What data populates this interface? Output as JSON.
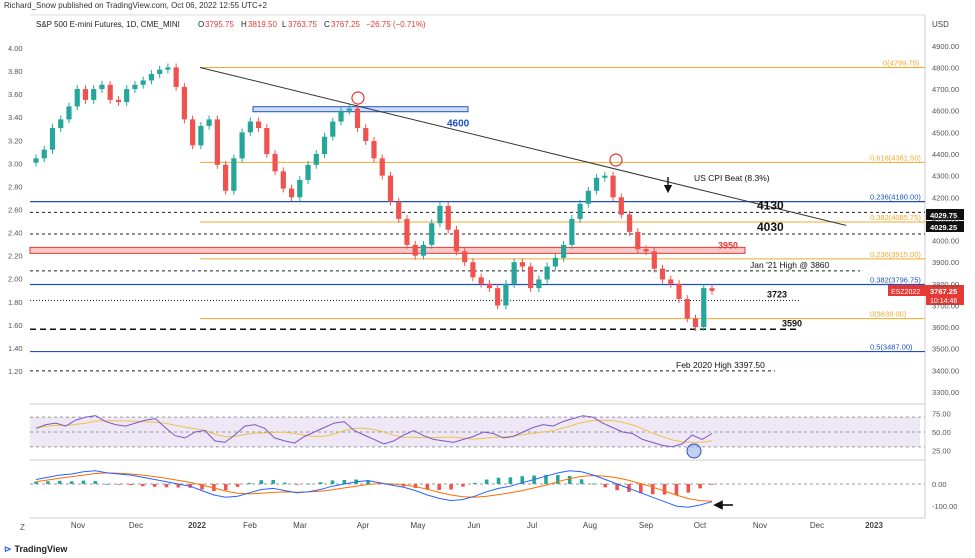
{
  "header": {
    "published": "Richard_Snow published on TradingView.com, Oct 06, 2022 12:55 UTC+2",
    "symbol_line": "S&P 500 E-mini Futures, 1D, CME_MINI",
    "ohlc": {
      "o_label": "O",
      "o": "3795.75",
      "h_label": "H",
      "h": "3819.50",
      "l_label": "L",
      "l": "3763.75",
      "c_label": "C",
      "c": "3767.25",
      "chg": "−26.75 (−0.71%)"
    },
    "currency": "USD"
  },
  "footer": {
    "brand": "TradingView",
    "z_label": "Z"
  },
  "colors": {
    "up": "#26a69a",
    "down": "#ef5350",
    "blue": "#1f4fc4",
    "fib": "#f0a92e",
    "red": "#e53935",
    "trend": "#333333",
    "rsi": "#7e57c2",
    "macd": "#2962ff",
    "signal": "#ff6d00"
  },
  "chart_data": [
    {
      "type": "candlestick",
      "panel": "price",
      "symbol": "ESZ2022",
      "x_labels": [
        "Nov",
        "Dec",
        "2022",
        "Feb",
        "Mar",
        "Apr",
        "May",
        "Jun",
        "Jul",
        "Aug",
        "Sep",
        "Oct",
        "Nov",
        "Dec",
        "2023"
      ],
      "right_axis_ticks": [
        "4900.00",
        "4800.00",
        "4700.00",
        "4600.00",
        "4500.00",
        "4400.00",
        "4300.00",
        "4200.00",
        "4100.00",
        "4000.00",
        "3900.00",
        "3800.00",
        "3700.00",
        "3600.00",
        "3500.00",
        "3400.00",
        "3300.00"
      ],
      "left_axis_ticks": [
        "4.00",
        "3.80",
        "3.60",
        "3.40",
        "3.20",
        "3.00",
        "2.80",
        "2.60",
        "2.40",
        "2.20",
        "2.00",
        "1.80",
        "1.60",
        "1.40",
        "1.20"
      ],
      "ylim": [
        3300,
        4950
      ],
      "closes": [
        4380,
        4420,
        4520,
        4560,
        4620,
        4700,
        4650,
        4700,
        4720,
        4650,
        4640,
        4700,
        4720,
        4740,
        4770,
        4790,
        4800,
        4710,
        4560,
        4440,
        4530,
        4560,
        4350,
        4230,
        4380,
        4500,
        4550,
        4520,
        4400,
        4320,
        4240,
        4200,
        4280,
        4350,
        4400,
        4480,
        4550,
        4600,
        4610,
        4520,
        4460,
        4380,
        4300,
        4180,
        4100,
        3980,
        3930,
        3980,
        4080,
        4160,
        4050,
        3950,
        3900,
        3830,
        3800,
        3780,
        3700,
        3800,
        3900,
        3880,
        3780,
        3820,
        3880,
        3920,
        3980,
        4100,
        4170,
        4230,
        4290,
        4300,
        4200,
        4120,
        4040,
        3960,
        3950,
        3870,
        3820,
        3800,
        3730,
        3640,
        3600,
        3780,
        3767.25
      ],
      "trend_line": {
        "from": [
          4800,
          0
        ],
        "to": [
          4070,
          1.0
        ]
      },
      "level_labels": [
        {
          "price": 4799.75,
          "text": "0(4799.75)",
          "kind": "fib"
        },
        {
          "price": 4600,
          "text": "4600",
          "kind": "blue"
        },
        {
          "price": 4361.5,
          "text": "0.618(4361.50)",
          "kind": "fib"
        },
        {
          "price": 4180,
          "text": "0.236(4180.00)",
          "kind": "blue"
        },
        {
          "price": 4130,
          "text": "4130",
          "kind": "dashed"
        },
        {
          "price": 4085.75,
          "text": "0.382(4085.75)",
          "kind": "fib"
        },
        {
          "price": 4030,
          "text": "4030",
          "kind": "dashed"
        },
        {
          "price": 3950,
          "text": "3950",
          "kind": "red"
        },
        {
          "price": 3915,
          "text": "0.236(3915.00)",
          "kind": "fib"
        },
        {
          "price": 3860,
          "text": "Jan '21 High @ 3860",
          "kind": "dashed"
        },
        {
          "price": 3796.75,
          "text": "0.382(3796.75)",
          "kind": "blue"
        },
        {
          "price": 3723,
          "text": "3723",
          "kind": "dotted"
        },
        {
          "price": 3639,
          "text": "0(3639.00)",
          "kind": "fib"
        },
        {
          "price": 3590,
          "text": "3590",
          "kind": "bigdash"
        },
        {
          "price": 3487,
          "text": "0.5(3487.00)",
          "kind": "blue"
        },
        {
          "price": 3397.5,
          "text": "Feb 2020 High 3397.50",
          "kind": "dashed"
        }
      ],
      "annotations": {
        "cpi": "US CPI Beat (8.3%)"
      },
      "price_tags": [
        {
          "text": "4029.75",
          "price": 4029.75
        },
        {
          "text": "4029.25",
          "price": 4029.25
        }
      ],
      "last_tag": {
        "symbol": "ESZ2022",
        "price": "3767.25",
        "countdown": "10:14:46"
      }
    },
    {
      "type": "line",
      "panel": "rsi",
      "axis_ticks": [
        "75.00",
        "50.00",
        "25.00"
      ],
      "ylim": [
        15,
        85
      ],
      "values": [
        55,
        60,
        62,
        58,
        66,
        70,
        72,
        64,
        60,
        58,
        62,
        66,
        68,
        56,
        45,
        42,
        50,
        52,
        38,
        36,
        46,
        58,
        60,
        55,
        42,
        38,
        35,
        44,
        50,
        56,
        62,
        64,
        52,
        46,
        40,
        34,
        38,
        46,
        52,
        45,
        40,
        38,
        36,
        40,
        44,
        50,
        48,
        42,
        44,
        50,
        56,
        60,
        58,
        64,
        68,
        72,
        70,
        62,
        56,
        50,
        48,
        40,
        36,
        32,
        30,
        34,
        46,
        40,
        48
      ]
    },
    {
      "type": "bar",
      "panel": "macd",
      "axis_ticks": [
        "0.00",
        "-100.00"
      ],
      "ylim": [
        -140,
        90
      ],
      "macd": [
        20,
        30,
        40,
        45,
        55,
        60,
        50,
        45,
        40,
        30,
        20,
        10,
        0,
        -10,
        -30,
        -50,
        -60,
        -55,
        -40,
        -25,
        -20,
        -30,
        -40,
        -35,
        -25,
        -10,
        0,
        10,
        15,
        5,
        -5,
        -15,
        -30,
        -50,
        -65,
        -75,
        -70,
        -55,
        -35,
        -20,
        -10,
        5,
        20,
        35,
        50,
        60,
        55,
        40,
        20,
        0,
        -20,
        -40,
        -60,
        -80,
        -100,
        -105,
        -95,
        -80
      ],
      "signal": [
        10,
        18,
        26,
        33,
        40,
        47,
        50,
        48,
        45,
        40,
        33,
        25,
        16,
        7,
        -5,
        -18,
        -32,
        -42,
        -45,
        -42,
        -38,
        -36,
        -37,
        -36,
        -33,
        -26,
        -18,
        -10,
        -2,
        2,
        0,
        -4,
        -12,
        -24,
        -38,
        -50,
        -58,
        -60,
        -55,
        -48,
        -40,
        -30,
        -18,
        -5,
        10,
        24,
        34,
        38,
        35,
        28,
        16,
        2,
        -14,
        -32,
        -50,
        -66,
        -75,
        -78
      ]
    }
  ]
}
